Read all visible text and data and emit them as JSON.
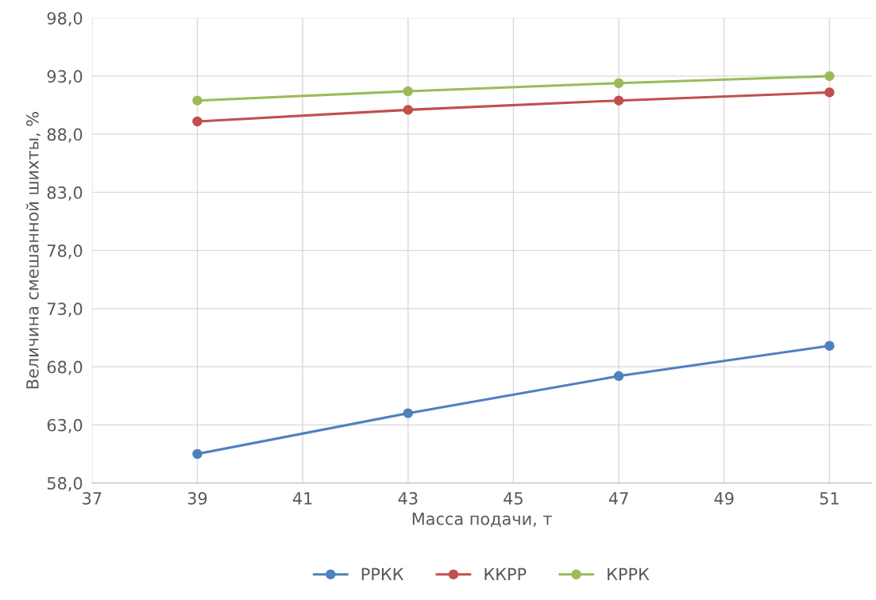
{
  "chart_data": {
    "type": "line",
    "xlabel": "Масса подачи, т",
    "ylabel": "Величина смешанной шихты, %",
    "x": [
      39,
      43,
      47,
      51
    ],
    "series": [
      {
        "name": "РРКК",
        "color": "#4f81bd",
        "values": [
          60.5,
          64.0,
          67.2,
          69.8
        ]
      },
      {
        "name": "ККРР",
        "color": "#c0504d",
        "values": [
          89.1,
          90.1,
          90.9,
          91.6
        ]
      },
      {
        "name": "КРРК",
        "color": "#9bbb59",
        "values": [
          90.9,
          91.7,
          92.4,
          93.0
        ]
      }
    ],
    "xlim": [
      37,
      51.8
    ],
    "xticks": [
      37,
      39,
      41,
      43,
      45,
      47,
      49,
      51
    ],
    "ylim": [
      58,
      98
    ],
    "yticks": [
      {
        "value": 58,
        "label": "58,0"
      },
      {
        "value": 63,
        "label": "63,0"
      },
      {
        "value": 68,
        "label": "68,0"
      },
      {
        "value": 73,
        "label": "73,0"
      },
      {
        "value": 78,
        "label": "78,0"
      },
      {
        "value": 83,
        "label": "83,0"
      },
      {
        "value": 88,
        "label": "88,0"
      },
      {
        "value": 93,
        "label": "93,0"
      },
      {
        "value": 98,
        "label": "98,0"
      }
    ],
    "grid": true,
    "legend": "bottom",
    "marker": "circle",
    "line_style": "solid"
  }
}
